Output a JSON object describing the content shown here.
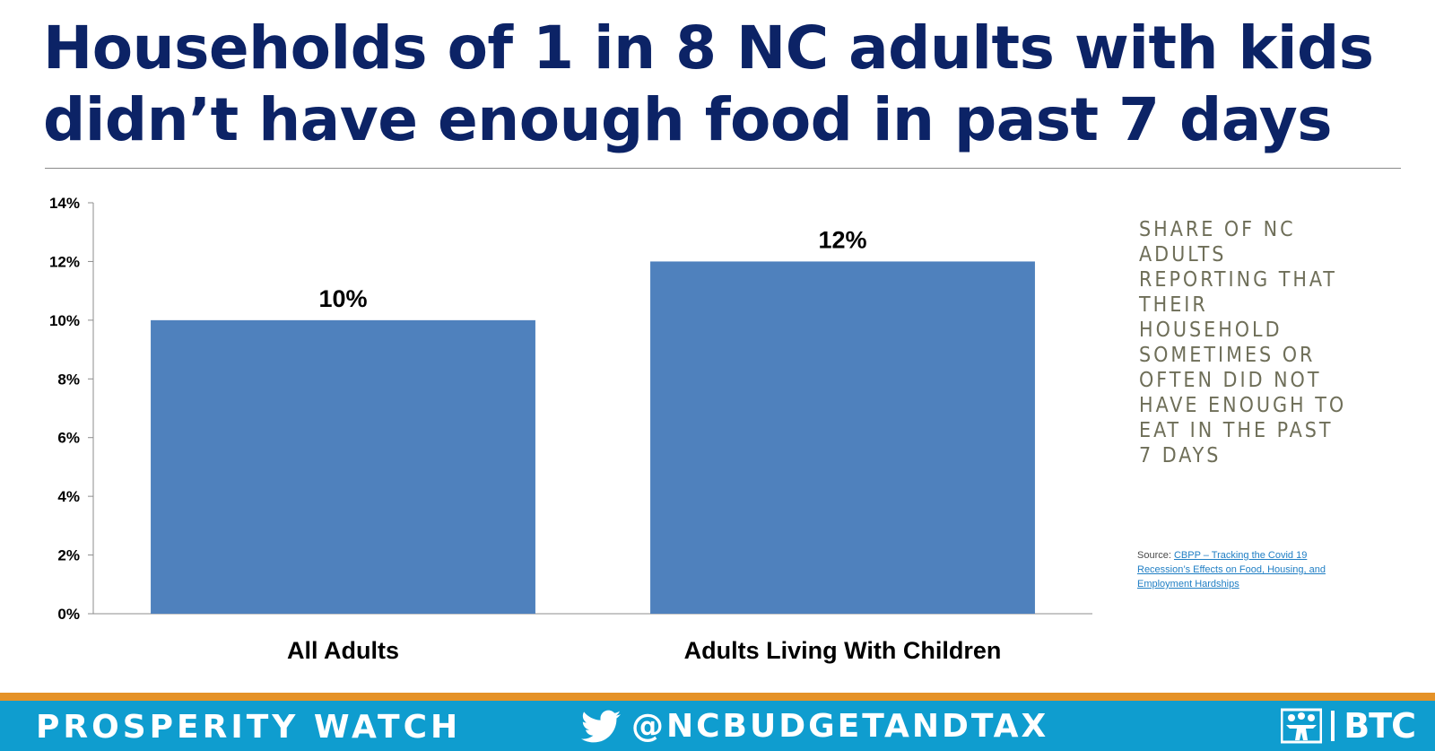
{
  "title": "Households of 1 in 8 NC adults with kids didn’t have enough food in past 7 days",
  "side_description": "Share of NC adults reporting that their household sometimes or often did not have enough to eat in the past 7 days",
  "source": {
    "prefix": "Source: ",
    "link_text": "CBPP – Tracking the Covid 19 Recession’s Effects on Food, Housing, and Employment  Hardships"
  },
  "footer": {
    "brand": "PROSPERITY WATCH",
    "twitter_handle": "@NCBUDGETANDTAX",
    "logo_text": "BTC"
  },
  "colors": {
    "title": "#0c2366",
    "bar": "#4f81bd",
    "footer_bg": "#0f9dcf",
    "footer_stripe": "#e59227"
  },
  "icons": [
    "twitter-bird-icon",
    "btc-figures-logo-icon"
  ],
  "chart_data": {
    "type": "bar",
    "categories": [
      "All Adults",
      "Adults Living With Children"
    ],
    "values": [
      10,
      12
    ],
    "data_labels": [
      "10%",
      "12%"
    ],
    "ylim": [
      0,
      14
    ],
    "yticks": [
      "0%",
      "2%",
      "4%",
      "6%",
      "8%",
      "10%",
      "12%",
      "14%"
    ],
    "ytick_values": [
      0,
      2,
      4,
      6,
      8,
      10,
      12,
      14
    ],
    "grid": false,
    "legend": "none"
  }
}
